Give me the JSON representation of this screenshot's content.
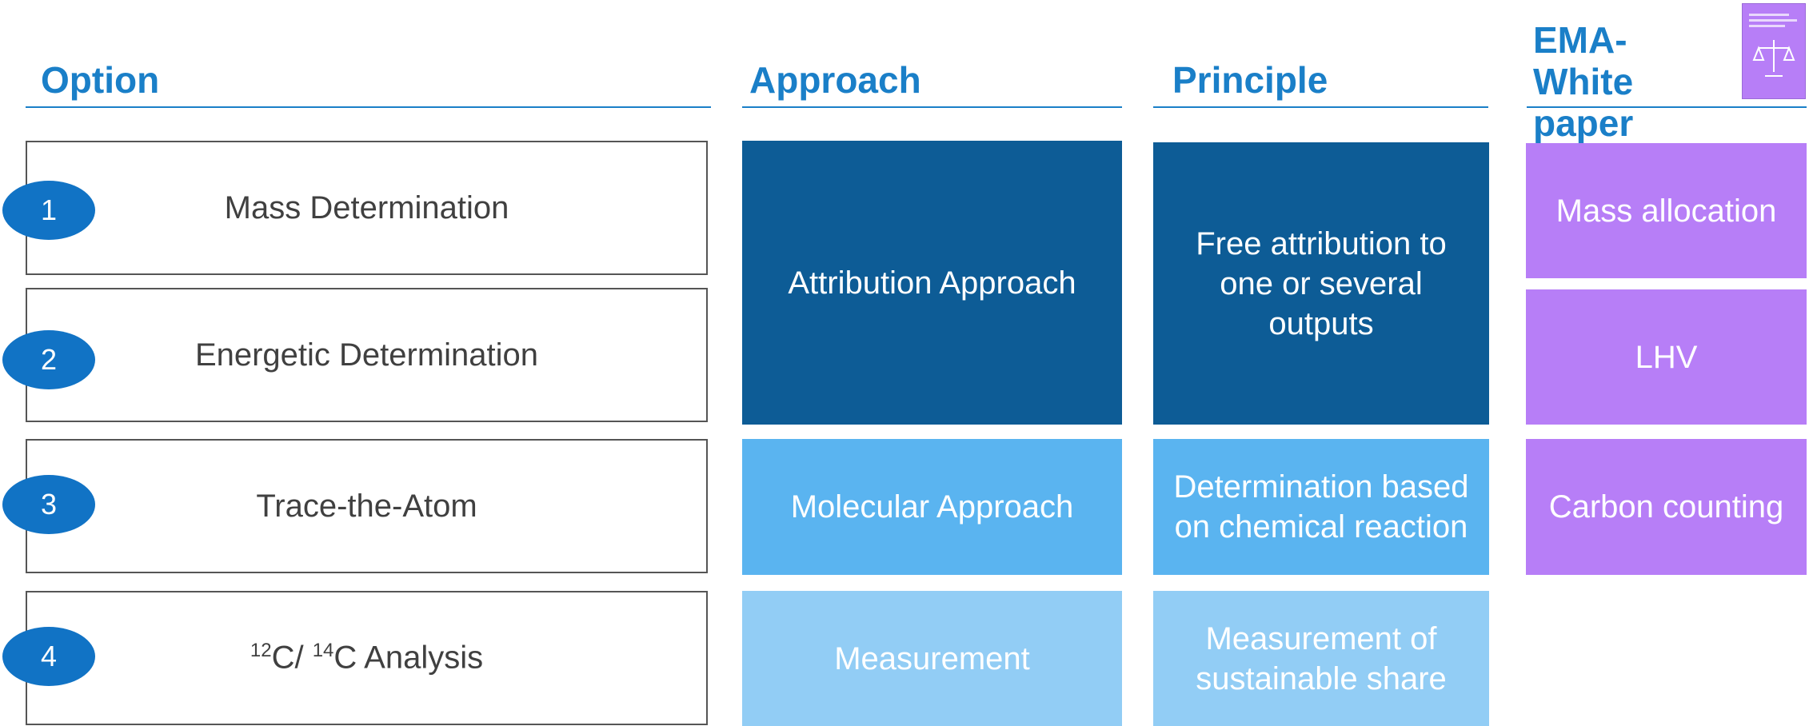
{
  "headers": {
    "option": "Option",
    "approach": "Approach",
    "principle": "Principle",
    "ema": "EMA- White paper"
  },
  "options": [
    {
      "number": "1",
      "label": "Mass Determination"
    },
    {
      "number": "2",
      "label": "Energetic Determination"
    },
    {
      "number": "3",
      "label": "Trace-the-Atom"
    },
    {
      "number": "4",
      "sup1": "12",
      "text1": "C/ ",
      "sup2": "14",
      "text2": "C Analysis"
    }
  ],
  "approaches": [
    "Attribution Approach",
    "Molecular Approach",
    "Measurement"
  ],
  "principles": [
    "Free attribution to one or several outputs",
    "Determination based on chemical reaction",
    "Measurement of sustainable share"
  ],
  "ema": [
    "Mass allocation",
    "LHV",
    "Carbon counting"
  ]
}
